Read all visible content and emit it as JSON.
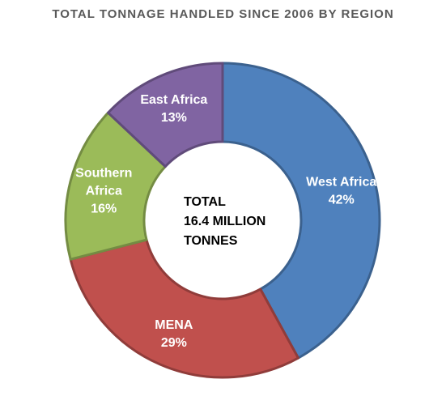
{
  "chart_data": {
    "type": "pie",
    "subtype": "donut",
    "title": "TOTAL TONNAGE HANDLED SINCE 2006 BY REGION",
    "center_text": [
      "TOTAL",
      "16.4 MILLION",
      "TONNES"
    ],
    "categories": [
      "West Africa",
      "MENA",
      "Southern Africa",
      "East Africa"
    ],
    "values": [
      42,
      29,
      16,
      13
    ],
    "value_labels": [
      "42%",
      "29%",
      "16%",
      "13%"
    ],
    "category_label_lines": [
      [
        "West Africa"
      ],
      [
        "MENA"
      ],
      [
        "Southern",
        "Africa"
      ],
      [
        "East Africa"
      ]
    ],
    "colors": [
      "#4F81BD",
      "#C0504D",
      "#9BBB59",
      "#8064A2"
    ],
    "legend": "none",
    "data_labels": "inside"
  }
}
